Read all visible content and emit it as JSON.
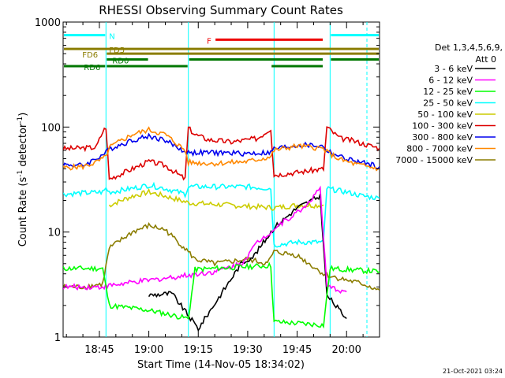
{
  "chart_data": {
    "type": "line",
    "title": "RHESSI Observing Summary Count Rates",
    "xlabel": "Start Time (14-Nov-05 18:34:02)",
    "ylabel_main": "Count Rate (s",
    "ylabel_sup1": "-1",
    "ylabel_mid": " detector",
    "ylabel_sup2": "-1",
    "ylabel_end": ")",
    "footer_date": "21-Oct-2021 03:24",
    "y_scale": "log",
    "ylim": [
      1,
      1000
    ],
    "xlim": [
      "18:34",
      "20:10"
    ],
    "x_ticks": [
      "18:45",
      "19:00",
      "19:15",
      "19:30",
      "19:45",
      "20:00"
    ],
    "y_ticks": [
      "1",
      "10",
      "100",
      "1000"
    ],
    "legend": {
      "header": "Det 1,3,4,5,6,9,",
      "att": "Att 0",
      "entries": [
        {
          "label": "3 - 6 keV",
          "color": "#000000"
        },
        {
          "label": "6 - 12 keV",
          "color": "#ff00ff"
        },
        {
          "label": "12 - 25 keV",
          "color": "#00ff00"
        },
        {
          "label": "25 - 50 keV",
          "color": "#00ffff"
        },
        {
          "label": "50 - 100 keV",
          "color": "#cccc00"
        },
        {
          "label": "100 - 300 keV",
          "color": "#dd0000"
        },
        {
          "label": "300 - 800 keV",
          "color": "#0000ee"
        },
        {
          "label": "800 - 7000 keV",
          "color": "#ff8800"
        },
        {
          "label": "7000 - 15000 keV",
          "color": "#8b7d00"
        }
      ]
    },
    "flag_bars": [
      {
        "label": "N",
        "color": "#00ffff",
        "value": 750,
        "segments": [
          [
            "18:34",
            "18:47"
          ],
          [
            "19:55",
            "20:10"
          ]
        ]
      },
      {
        "label": "F",
        "color": "#ee0000",
        "value": 680,
        "segments": [
          [
            "19:20",
            "19:53"
          ]
        ]
      },
      {
        "label": "FD5",
        "color": "#8b7d00",
        "value": 555,
        "segments": [
          [
            "18:34",
            "20:10"
          ]
        ]
      },
      {
        "label": "FD6",
        "color": "#8b7d00",
        "value": 500,
        "segments": [
          [
            "18:47",
            "20:10"
          ]
        ]
      },
      {
        "label": "RD0",
        "color": "#007700",
        "value": 440,
        "segments": [
          [
            "18:47",
            "19:00"
          ],
          [
            "19:12",
            "19:53"
          ],
          [
            "19:55",
            "20:10"
          ]
        ]
      },
      {
        "label": "RD6",
        "color": "#007700",
        "value": 380,
        "segments": [
          [
            "18:34",
            "18:47"
          ],
          [
            "18:47",
            "19:12"
          ],
          [
            "19:37",
            "19:53"
          ]
        ]
      }
    ],
    "night_intervals": [
      [
        "18:47",
        "19:12"
      ],
      [
        "19:38",
        "19:55"
      ]
    ],
    "series": [
      {
        "name": "100 - 300 keV",
        "color": "#dd0000",
        "points": [
          [
            "18:34",
            62
          ],
          [
            "18:44",
            64
          ],
          [
            "18:46",
            90
          ],
          [
            "18:47",
            100
          ],
          [
            "18:48",
            32
          ],
          [
            "18:55",
            40
          ],
          [
            "19:00",
            47
          ],
          [
            "19:05",
            43
          ],
          [
            "19:11",
            32
          ],
          [
            "19:12",
            98
          ],
          [
            "19:14",
            85
          ],
          [
            "19:18",
            76
          ],
          [
            "19:25",
            72
          ],
          [
            "19:33",
            78
          ],
          [
            "19:37",
            97
          ],
          [
            "19:38",
            35
          ],
          [
            "19:45",
            37
          ],
          [
            "19:53",
            40
          ],
          [
            "19:54",
            100
          ],
          [
            "19:58",
            78
          ],
          [
            "20:02",
            74
          ],
          [
            "20:06",
            68
          ],
          [
            "20:10",
            63
          ]
        ]
      },
      {
        "name": "300 - 800 keV",
        "color": "#0000ee",
        "points": [
          [
            "18:34",
            44
          ],
          [
            "18:40",
            43
          ],
          [
            "18:44",
            50
          ],
          [
            "18:47",
            57
          ],
          [
            "18:48",
            62
          ],
          [
            "18:55",
            75
          ],
          [
            "19:00",
            82
          ],
          [
            "19:05",
            75
          ],
          [
            "19:11",
            58
          ],
          [
            "19:12",
            57
          ],
          [
            "19:20",
            57
          ],
          [
            "19:30",
            56
          ],
          [
            "19:37",
            57
          ],
          [
            "19:38",
            62
          ],
          [
            "19:45",
            67
          ],
          [
            "19:50",
            67
          ],
          [
            "19:53",
            65
          ],
          [
            "19:54",
            60
          ],
          [
            "19:58",
            52
          ],
          [
            "20:03",
            47
          ],
          [
            "20:10",
            42
          ]
        ]
      },
      {
        "name": "800 - 7000 keV",
        "color": "#ff8800",
        "points": [
          [
            "18:34",
            41
          ],
          [
            "18:40",
            42
          ],
          [
            "18:44",
            46
          ],
          [
            "18:47",
            52
          ],
          [
            "18:48",
            64
          ],
          [
            "18:55",
            85
          ],
          [
            "19:00",
            94
          ],
          [
            "19:05",
            85
          ],
          [
            "19:11",
            60
          ],
          [
            "19:12",
            46
          ],
          [
            "19:20",
            45
          ],
          [
            "19:30",
            47
          ],
          [
            "19:37",
            52
          ],
          [
            "19:38",
            60
          ],
          [
            "19:45",
            66
          ],
          [
            "19:50",
            64
          ],
          [
            "19:53",
            62
          ],
          [
            "19:54",
            58
          ],
          [
            "19:58",
            49
          ],
          [
            "20:03",
            44
          ],
          [
            "20:10",
            40
          ]
        ]
      },
      {
        "name": "25 - 50 keV",
        "color": "#00ffff",
        "points": [
          [
            "18:34",
            23
          ],
          [
            "18:46",
            24
          ],
          [
            "18:47",
            26
          ],
          [
            "18:48",
            24
          ],
          [
            "18:55",
            26
          ],
          [
            "19:00",
            28
          ],
          [
            "19:05",
            26
          ],
          [
            "19:11",
            23
          ],
          [
            "19:12",
            27
          ],
          [
            "19:20",
            27
          ],
          [
            "19:30",
            27
          ],
          [
            "19:37",
            26
          ],
          [
            "19:38",
            7.5
          ],
          [
            "19:45",
            8
          ],
          [
            "19:53",
            8
          ],
          [
            "19:54",
            26
          ],
          [
            "20:00",
            24
          ],
          [
            "20:05",
            22
          ],
          [
            "20:10",
            21
          ]
        ]
      },
      {
        "name": "50 - 100 keV",
        "color": "#cccc00",
        "points": [
          [
            "18:48",
            18
          ],
          [
            "18:55",
            22
          ],
          [
            "19:00",
            24
          ],
          [
            "19:05",
            22
          ],
          [
            "19:12",
            19
          ],
          [
            "19:38",
            17
          ],
          [
            "19:45",
            18
          ],
          [
            "19:53",
            18
          ]
        ]
      },
      {
        "name": "7000 - 15000 keV",
        "color": "#8b7d00",
        "points": [
          [
            "18:34",
            3
          ],
          [
            "18:40",
            3
          ],
          [
            "18:46",
            3.2
          ],
          [
            "18:48",
            7
          ],
          [
            "18:55",
            10
          ],
          [
            "19:00",
            11.5
          ],
          [
            "19:05",
            10.5
          ],
          [
            "19:11",
            7
          ],
          [
            "19:14",
            5.5
          ],
          [
            "19:20",
            5
          ],
          [
            "19:30",
            5.5
          ],
          [
            "19:36",
            5
          ],
          [
            "19:38",
            6.5
          ],
          [
            "19:45",
            6
          ],
          [
            "19:53",
            4
          ],
          [
            "19:55",
            3.8
          ],
          [
            "20:05",
            3.2
          ],
          [
            "20:10",
            2.8
          ]
        ]
      },
      {
        "name": "3 - 6 keV",
        "color": "#000000",
        "points": [
          [
            "19:00",
            2.5
          ],
          [
            "19:07",
            2.6
          ],
          [
            "19:15",
            1.2
          ],
          [
            "19:28",
            5
          ],
          [
            "19:32",
            6
          ],
          [
            "19:38",
            11
          ],
          [
            "19:45",
            17
          ],
          [
            "19:52",
            22
          ],
          [
            "19:54",
            2.5
          ],
          [
            "20:00",
            1.5
          ]
        ]
      },
      {
        "name": "6 - 12 keV",
        "color": "#ff00ff",
        "points": [
          [
            "18:34",
            3
          ],
          [
            "18:45",
            3
          ],
          [
            "19:20",
            4.2
          ],
          [
            "19:28",
            5
          ],
          [
            "19:33",
            8
          ],
          [
            "19:40",
            12
          ],
          [
            "19:47",
            17
          ],
          [
            "19:52",
            26
          ],
          [
            "19:54",
            3
          ],
          [
            "20:00",
            2.7
          ]
        ]
      },
      {
        "name": "12 - 25 keV",
        "color": "#00ff00",
        "points": [
          [
            "18:34",
            4.5
          ],
          [
            "18:46",
            4.5
          ],
          [
            "18:48",
            2
          ],
          [
            "19:00",
            1.8
          ],
          [
            "19:12",
            1.5
          ],
          [
            "19:14",
            4.4
          ],
          [
            "19:25",
            4.6
          ],
          [
            "19:37",
            4.8
          ],
          [
            "19:38",
            1.4
          ],
          [
            "19:53",
            1.3
          ],
          [
            "19:55",
            4.5
          ],
          [
            "20:10",
            4.2
          ]
        ]
      }
    ]
  }
}
